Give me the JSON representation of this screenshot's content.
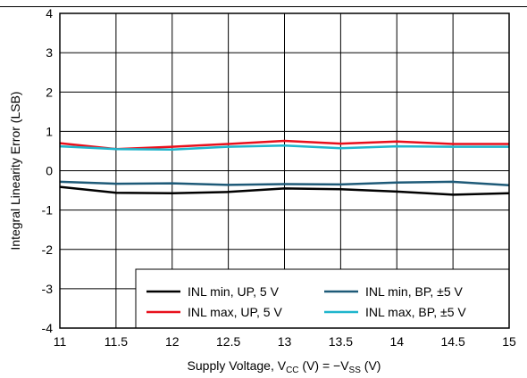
{
  "chart_data": {
    "type": "line",
    "title": "",
    "xlabel_parts": {
      "base": "Supply Voltage, V",
      "sub1": "CC",
      "mid": " (V) = −V",
      "sub2": "SS",
      "end": " (V)"
    },
    "ylabel": "Integral Linearity Error (LSB)",
    "xlim": [
      11,
      15
    ],
    "ylim": [
      -4,
      4
    ],
    "x_ticks": [
      11,
      11.5,
      12,
      12.5,
      13,
      13.5,
      14,
      14.5,
      15
    ],
    "x_tick_labels": [
      "11",
      "11.5",
      "12",
      "12.5",
      "13",
      "13.5",
      "14",
      "14.5",
      "15"
    ],
    "y_ticks": [
      -4,
      -3,
      -2,
      -1,
      0,
      1,
      2,
      3,
      4
    ],
    "y_tick_labels": [
      "-4",
      "-3",
      "-2",
      "-1",
      "0",
      "1",
      "2",
      "3",
      "4"
    ],
    "grid": true,
    "legend_position": "bottom-right",
    "x": [
      11,
      11.5,
      12,
      12.5,
      13,
      13.5,
      14,
      14.5,
      15
    ],
    "series": [
      {
        "name": "INL min, UP, 5 V",
        "color": "#000000",
        "values": [
          -0.41,
          -0.56,
          -0.57,
          -0.54,
          -0.45,
          -0.47,
          -0.53,
          -0.61,
          -0.57
        ]
      },
      {
        "name": "INL max, UP, 5 V",
        "color": "#e8101c",
        "values": [
          0.7,
          0.55,
          0.61,
          0.68,
          0.76,
          0.69,
          0.74,
          0.68,
          0.68
        ]
      },
      {
        "name": "INL min, BP, ±5 V",
        "color": "#1e5a78",
        "values": [
          -0.28,
          -0.33,
          -0.32,
          -0.36,
          -0.34,
          -0.35,
          -0.3,
          -0.28,
          -0.37
        ]
      },
      {
        "name": "INL max, BP, ±5 V",
        "color": "#1eb5cc",
        "values": [
          0.62,
          0.55,
          0.54,
          0.61,
          0.64,
          0.57,
          0.62,
          0.61,
          0.61
        ]
      }
    ]
  }
}
